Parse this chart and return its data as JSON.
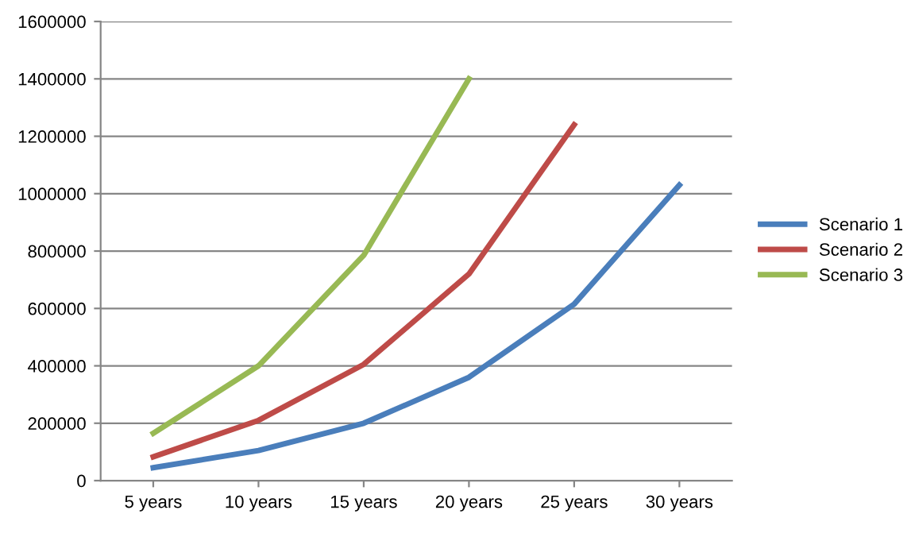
{
  "chart_data": {
    "type": "line",
    "categories": [
      "5 years",
      "10 years",
      "15 years",
      "20 years",
      "25 years",
      "30 years"
    ],
    "series": [
      {
        "name": "Scenario 1",
        "color": "#4a7ebb",
        "values": [
          45000,
          105000,
          200000,
          360000,
          615000,
          1030000
        ]
      },
      {
        "name": "Scenario 2",
        "color": "#be4b48",
        "values": [
          83000,
          210000,
          405000,
          720000,
          1240000,
          null
        ]
      },
      {
        "name": "Scenario 3",
        "color": "#98b954",
        "values": [
          165000,
          400000,
          785000,
          1400000,
          null,
          null
        ]
      }
    ],
    "ylim": [
      0,
      1600000
    ],
    "yticks": [
      0,
      200000,
      400000,
      600000,
      800000,
      1000000,
      1200000,
      1400000,
      1600000
    ],
    "grid": "y",
    "legend": "right",
    "marker": "none",
    "line_style": "solid"
  }
}
